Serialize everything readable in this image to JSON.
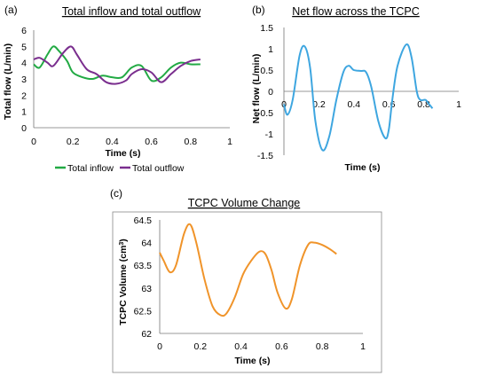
{
  "chart_data": [
    {
      "type": "line",
      "panel_label": "(a)",
      "title": "Total inflow and total outflow",
      "xlabel": "Time (s)",
      "ylabel": "Total flow (L/min)",
      "xlim": [
        0,
        1
      ],
      "ylim": [
        0,
        6
      ],
      "xticks": [
        "0",
        "0.2",
        "0.4",
        "0.6",
        "0.8",
        "1"
      ],
      "yticks": [
        "0",
        "1",
        "2",
        "3",
        "4",
        "5",
        "6"
      ],
      "grid": false,
      "legend": "bottom",
      "series": [
        {
          "name": "Total inflow",
          "color": "#22aa44",
          "x": [
            0,
            0.03,
            0.07,
            0.1,
            0.13,
            0.17,
            0.2,
            0.25,
            0.3,
            0.35,
            0.4,
            0.45,
            0.5,
            0.55,
            0.6,
            0.65,
            0.7,
            0.75,
            0.8,
            0.85
          ],
          "y": [
            3.9,
            3.7,
            4.5,
            5.0,
            4.7,
            4.1,
            3.4,
            3.1,
            3.0,
            3.2,
            3.1,
            3.1,
            3.7,
            3.8,
            2.9,
            3.1,
            3.7,
            4.0,
            3.9,
            3.9
          ]
        },
        {
          "name": "Total outflow",
          "color": "#7a2e8e",
          "x": [
            0,
            0.03,
            0.07,
            0.1,
            0.15,
            0.19,
            0.22,
            0.27,
            0.32,
            0.37,
            0.42,
            0.47,
            0.5,
            0.55,
            0.6,
            0.65,
            0.7,
            0.75,
            0.8,
            0.85
          ],
          "y": [
            4.2,
            4.3,
            4.0,
            3.8,
            4.6,
            5.0,
            4.5,
            3.6,
            3.3,
            2.8,
            2.7,
            2.9,
            3.3,
            3.6,
            3.4,
            2.8,
            3.3,
            3.8,
            4.1,
            4.2
          ]
        }
      ]
    },
    {
      "type": "line",
      "panel_label": "(b)",
      "title": "Net flow across the TCPC",
      "xlabel": "Time (s)",
      "ylabel": "Net flow (L/min)",
      "xlim": [
        0,
        1
      ],
      "ylim": [
        -1.5,
        1.5
      ],
      "xticks": [
        "0",
        "0.2",
        "0.4",
        "0.6",
        "0.8",
        "1"
      ],
      "yticks": [
        "1.5",
        "1",
        "0.5",
        "0",
        "-0.5",
        "-1",
        "-1.5"
      ],
      "grid": false,
      "series": [
        {
          "color": "#3ea6e0",
          "x": [
            0,
            0.02,
            0.05,
            0.09,
            0.12,
            0.15,
            0.18,
            0.22,
            0.26,
            0.3,
            0.34,
            0.37,
            0.4,
            0.44,
            0.47,
            0.5,
            0.54,
            0.58,
            0.6,
            0.62,
            0.65,
            0.7,
            0.73,
            0.76,
            0.78,
            0.81,
            0.83,
            0.85
          ],
          "y": [
            -0.3,
            -0.55,
            -0.2,
            0.85,
            1.05,
            0.55,
            -0.7,
            -1.38,
            -1.05,
            -0.2,
            0.45,
            0.6,
            0.5,
            0.48,
            0.45,
            0.1,
            -0.7,
            -1.1,
            -0.9,
            -0.2,
            0.6,
            1.1,
            0.8,
            0.0,
            -0.2,
            -0.2,
            -0.3,
            -0.4
          ]
        }
      ]
    },
    {
      "type": "line",
      "panel_label": "(c)",
      "title": "TCPC Volume Change",
      "xlabel": "Time (s)",
      "ylabel_main": "TCPC Volume (cm",
      "ylabel_sup": "3",
      "ylabel_end": ")",
      "xlim": [
        0,
        1
      ],
      "ylim": [
        62,
        64.5
      ],
      "xticks": [
        "0",
        "0.2",
        "0.4",
        "0.6",
        "0.8",
        "1"
      ],
      "yticks": [
        "64.5",
        "64",
        "63.5",
        "63",
        "62.5",
        "62"
      ],
      "grid": false,
      "series": [
        {
          "color": "#f0942a",
          "x": [
            0,
            0.02,
            0.05,
            0.08,
            0.12,
            0.15,
            0.18,
            0.22,
            0.26,
            0.3,
            0.33,
            0.37,
            0.41,
            0.45,
            0.49,
            0.52,
            0.55,
            0.58,
            0.62,
            0.65,
            0.69,
            0.73,
            0.76,
            0.8,
            0.84,
            0.87
          ],
          "y": [
            63.78,
            63.6,
            63.35,
            63.5,
            64.2,
            64.4,
            64.0,
            63.2,
            62.6,
            62.4,
            62.45,
            62.8,
            63.3,
            63.6,
            63.8,
            63.75,
            63.4,
            62.9,
            62.55,
            62.75,
            63.5,
            63.95,
            64.0,
            63.95,
            63.85,
            63.75
          ]
        }
      ]
    }
  ]
}
